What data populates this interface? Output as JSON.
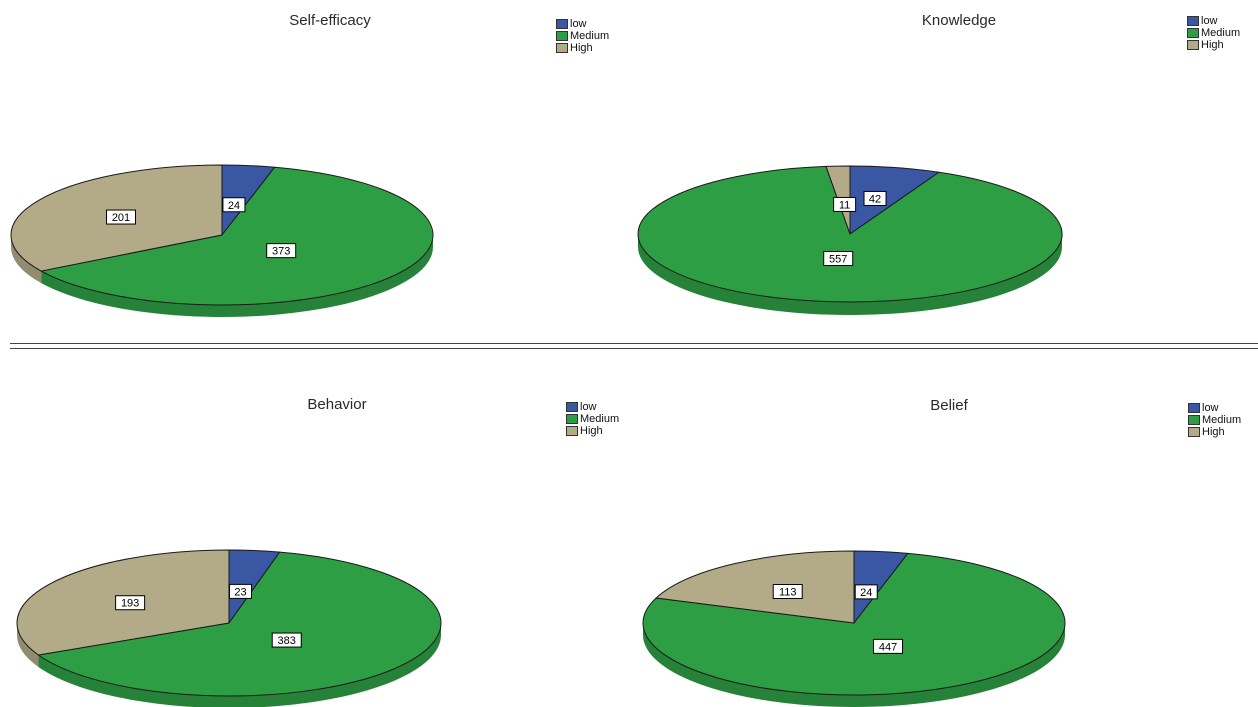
{
  "colors": {
    "low": "#3a57a3",
    "medium": "#2e9e44",
    "high": "#b3aa88"
  },
  "chart_data": [
    {
      "type": "pie",
      "title": "Self-efficacy",
      "categories": [
        "low",
        "Medium",
        "High"
      ],
      "values": [
        24,
        373,
        201
      ],
      "legend": [
        "low",
        "Medium",
        "High"
      ],
      "legend_position": "top-right"
    },
    {
      "type": "pie",
      "title": "Knowledge",
      "categories": [
        "low",
        "Medium",
        "High"
      ],
      "values": [
        42,
        557,
        11
      ],
      "legend": [
        "low",
        "Medium",
        "High"
      ],
      "legend_position": "top-right"
    },
    {
      "type": "pie",
      "title": "Behavior",
      "categories": [
        "low",
        "Medium",
        "High"
      ],
      "values": [
        23,
        383,
        193
      ],
      "legend": [
        "low",
        "Medium",
        "High"
      ],
      "legend_position": "top-right"
    },
    {
      "type": "pie",
      "title": "Belief",
      "categories": [
        "low",
        "Medium",
        "High"
      ],
      "values": [
        24,
        447,
        113
      ],
      "legend": [
        "low",
        "Medium",
        "High"
      ],
      "legend_position": "top-right"
    }
  ]
}
